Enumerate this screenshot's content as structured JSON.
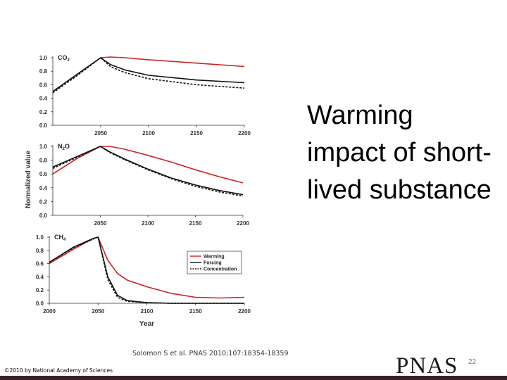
{
  "slide": {
    "title_lines": [
      "Warming",
      "impact of short-",
      "lived substance"
    ],
    "citation": "Solomon S et al. PNAS 2010;107:18354-18359",
    "copyright": "©2010 by National Academy of Sciences",
    "logo_text": "PNAS",
    "page_number": "22"
  },
  "colors": {
    "warming": "#cc2222",
    "forcing": "#111111",
    "concentration": "#111111"
  },
  "chart_data": [
    {
      "type": "line",
      "panel_label": "CO",
      "panel_label_sub": "2",
      "x": [
        2000,
        2025,
        2050,
        2060,
        2075,
        2100,
        2150,
        2200
      ],
      "xlim": [
        2000,
        2200
      ],
      "ylim": [
        0,
        1
      ],
      "xticks": [
        "2050",
        "2100",
        "2150",
        "2200"
      ],
      "yticks": [
        "0.0",
        "0.2",
        "0.4",
        "0.6",
        "0.8",
        "1.0"
      ],
      "series": [
        {
          "name": "Warming",
          "values": [
            0.5,
            0.75,
            1.0,
            1.01,
            1.0,
            0.97,
            0.92,
            0.87
          ]
        },
        {
          "name": "Forcing",
          "values": [
            0.5,
            0.75,
            1.0,
            0.9,
            0.82,
            0.74,
            0.67,
            0.63
          ]
        },
        {
          "name": "Concentration",
          "values": [
            0.48,
            0.73,
            1.0,
            0.87,
            0.78,
            0.69,
            0.6,
            0.55
          ]
        }
      ]
    },
    {
      "type": "line",
      "panel_label": "N",
      "panel_label_sub": "2",
      "panel_label_suffix": "O",
      "ylabel": "Normalized value",
      "x": [
        2000,
        2025,
        2050,
        2060,
        2075,
        2100,
        2125,
        2150,
        2175,
        2200
      ],
      "xlim": [
        2000,
        2200
      ],
      "ylim": [
        0,
        1
      ],
      "xticks": [
        "2050",
        "2100",
        "2150",
        "2200"
      ],
      "yticks": [
        "0.0",
        "0.2",
        "0.4",
        "0.6",
        "0.8",
        "1.0"
      ],
      "series": [
        {
          "name": "Warming",
          "values": [
            0.6,
            0.82,
            1.0,
            1.0,
            0.96,
            0.87,
            0.77,
            0.66,
            0.56,
            0.47
          ]
        },
        {
          "name": "Forcing",
          "values": [
            0.7,
            0.85,
            1.0,
            0.92,
            0.82,
            0.67,
            0.54,
            0.44,
            0.36,
            0.3
          ]
        },
        {
          "name": "Concentration",
          "values": [
            0.68,
            0.84,
            1.0,
            0.91,
            0.81,
            0.66,
            0.53,
            0.42,
            0.34,
            0.28
          ]
        }
      ]
    },
    {
      "type": "line",
      "panel_label": "CH",
      "panel_label_sub": "4",
      "xlabel": "Year",
      "x": [
        2000,
        2025,
        2045,
        2050,
        2060,
        2070,
        2080,
        2100,
        2125,
        2150,
        2175,
        2200
      ],
      "xlim": [
        2000,
        2200
      ],
      "ylim": [
        0,
        1
      ],
      "xticks": [
        "2000",
        "2050",
        "2100",
        "2150",
        "2200"
      ],
      "yticks": [
        "0.0",
        "0.2",
        "0.4",
        "0.6",
        "0.8",
        "1.0"
      ],
      "legend": [
        "Warming",
        "Forcing",
        "Concentration"
      ],
      "legend_position": "right",
      "series": [
        {
          "name": "Warming",
          "values": [
            0.6,
            0.82,
            0.98,
            1.0,
            0.65,
            0.45,
            0.35,
            0.25,
            0.15,
            0.09,
            0.08,
            0.09
          ]
        },
        {
          "name": "Forcing",
          "values": [
            0.62,
            0.85,
            0.98,
            1.0,
            0.4,
            0.12,
            0.04,
            0.01,
            0.0,
            0.0,
            0.0,
            0.0
          ]
        },
        {
          "name": "Concentration",
          "values": [
            0.62,
            0.84,
            0.97,
            1.0,
            0.36,
            0.09,
            0.03,
            0.01,
            0.0,
            0.0,
            0.0,
            0.0
          ]
        }
      ]
    }
  ]
}
